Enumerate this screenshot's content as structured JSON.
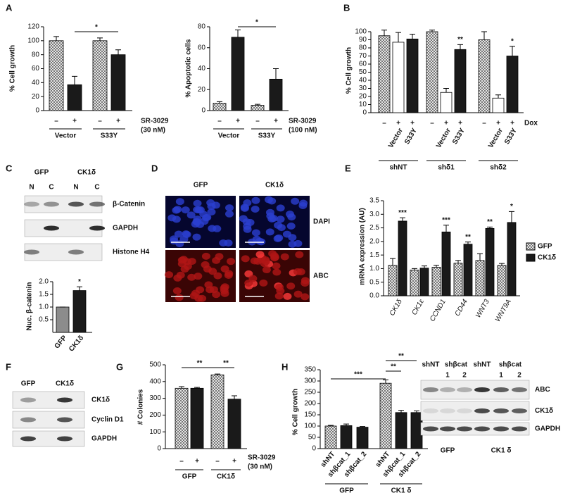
{
  "panel_labels": [
    "A",
    "B",
    "C",
    "D",
    "E",
    "F",
    "G",
    "H"
  ],
  "chart_data": [
    {
      "type": "bar",
      "ylabel": "% Cell growth",
      "categories": [
        "–",
        "+",
        "–",
        "+"
      ],
      "groups": [
        "Vector",
        "S33Y"
      ],
      "treatment": [
        "SR-3029",
        "(30 nM)"
      ],
      "values": [
        100,
        37,
        100,
        80
      ],
      "errors": [
        6,
        12,
        4,
        7
      ],
      "fills": [
        "checker",
        "black",
        "checker",
        "black"
      ],
      "ylim": [
        0,
        120
      ],
      "yticks": [
        0,
        20,
        40,
        60,
        80,
        100,
        120
      ],
      "annotations": [
        "*"
      ]
    },
    {
      "type": "bar",
      "ylabel": "% Apoptotic cells",
      "categories": [
        "–",
        "+",
        "–",
        "+"
      ],
      "groups": [
        "Vector",
        "S33Y"
      ],
      "treatment": [
        "SR-3029",
        "(100 nM)"
      ],
      "values": [
        7,
        70,
        5,
        30
      ],
      "errors": [
        1.5,
        7,
        1,
        10
      ],
      "fills": [
        "checker",
        "black",
        "checker",
        "black"
      ],
      "ylim": [
        0,
        80
      ],
      "yticks": [
        0,
        20,
        40,
        60,
        80
      ],
      "annotations": [
        "*"
      ]
    },
    {
      "type": "bar",
      "ylabel": "% Cell growth",
      "categories": [
        "–",
        "+",
        "+",
        "–",
        "+",
        "+",
        "–",
        "+",
        "+"
      ],
      "x_labels": [
        null,
        "Vector",
        "S33Y",
        null,
        "Vector",
        "S33Y",
        null,
        "Vector",
        "S33Y"
      ],
      "groups": [
        "shNT",
        "shδ1",
        "shδ2"
      ],
      "treatment": [
        "Dox"
      ],
      "values": [
        95,
        87,
        91,
        100,
        25,
        78,
        90,
        18,
        70
      ],
      "errors": [
        7,
        12,
        6,
        2,
        5,
        6,
        10,
        4,
        12
      ],
      "fills": [
        "checker",
        "white",
        "black",
        "checker",
        "white",
        "black",
        "checker",
        "white",
        "black"
      ],
      "ylim": [
        0,
        100
      ],
      "yticks": [
        0,
        10,
        20,
        30,
        40,
        50,
        60,
        70,
        80,
        90,
        100
      ],
      "annotations": [
        "**",
        "*"
      ]
    },
    {
      "type": "bar",
      "ylabel": "Nuc. β-catenin",
      "categories": [
        "GFP",
        "CK1δ"
      ],
      "values": [
        1.0,
        1.65
      ],
      "errors": [
        0,
        0.15
      ],
      "fills": [
        "gray",
        "black"
      ],
      "ylim": [
        0,
        2.0
      ],
      "yticks": [
        0.5,
        {
          "value": 1.0,
          "label": "1.0"
        },
        1.5,
        {
          "value": 2.0,
          "label": "2.0"
        }
      ],
      "annotations": [
        "*"
      ]
    },
    {
      "type": "grouped-bar",
      "ylabel": "mRNA expression (AU)",
      "categories": [
        "CK1δ",
        "CK1ε",
        "CCND1",
        "CD44",
        "WNT3",
        "WNT9A"
      ],
      "series": [
        {
          "name": "GFP",
          "fill": "checker",
          "values": [
            1.12,
            0.95,
            1.05,
            1.2,
            1.3,
            1.12
          ],
          "errors": [
            0.25,
            0.05,
            0.07,
            0.1,
            0.25,
            0.07
          ]
        },
        {
          "name": "CK1δ",
          "fill": "black",
          "values": [
            2.75,
            1.02,
            2.35,
            1.9,
            2.48,
            2.7
          ],
          "errors": [
            0.12,
            0.08,
            0.25,
            0.08,
            0.05,
            0.4
          ]
        }
      ],
      "ylim": [
        0,
        3.5
      ],
      "yticks": [
        {
          "value": 0,
          "label": "0.0"
        },
        0.5,
        {
          "value": 1,
          "label": "1.0"
        },
        1.5,
        {
          "value": 2,
          "label": "2.0"
        },
        2.5,
        {
          "value": 3,
          "label": "3.0"
        },
        3.5
      ],
      "annotations": [
        "***",
        "***",
        "**",
        "**",
        "*"
      ],
      "legend": "right"
    },
    {
      "type": "bar",
      "ylabel": "# Colonies",
      "categories": [
        "–",
        "+",
        "–",
        "+"
      ],
      "groups": [
        "GFP",
        "CK1δ"
      ],
      "treatment": [
        "SR-3029",
        "(30 nM)"
      ],
      "values": [
        360,
        360,
        440,
        295
      ],
      "errors": [
        10,
        5,
        5,
        20
      ],
      "fills": [
        "checker",
        "black",
        "checker",
        "black"
      ],
      "ylim": [
        0,
        500
      ],
      "yticks": [
        0,
        100,
        200,
        300,
        400,
        500
      ],
      "annotations": [
        "**",
        "**"
      ]
    },
    {
      "type": "bar",
      "ylabel": "% Cell growth",
      "categories": [
        "shNT",
        "shβcat_1",
        "shβcat_2",
        "shNT",
        "shβcat_1",
        "shβcat_2"
      ],
      "groups": [
        "GFP",
        "CK1 δ"
      ],
      "values": [
        100,
        102,
        95,
        290,
        160,
        160
      ],
      "errors": [
        3,
        7,
        3,
        15,
        10,
        7
      ],
      "fills": [
        "checker",
        "black",
        "black",
        "checker",
        "black",
        "black"
      ],
      "ylim": [
        0,
        350
      ],
      "yticks": [
        0,
        50,
        100,
        150,
        200,
        250,
        300,
        350
      ],
      "annotations": [
        "***",
        "**",
        "**"
      ]
    }
  ],
  "blots": [
    {
      "lanes": [
        "GFP",
        "CK1δ"
      ],
      "sublanes": [
        "N",
        "C",
        "N",
        "C"
      ],
      "rows": [
        "β-Catenin",
        "GAPDH",
        "Histone H4"
      ]
    },
    {
      "lanes": [
        "GFP",
        "CK1δ"
      ],
      "rows": [
        "CK1δ",
        "Cyclin D1",
        "GAPDH"
      ]
    },
    {
      "lanes": [
        "shNT",
        "shβcat",
        "shNT",
        "shβcat"
      ],
      "sublanes": [
        "1",
        "2",
        "1",
        "2"
      ],
      "groups": [
        "GFP",
        "CK1 δ"
      ],
      "rows": [
        "ABC",
        "CK1δ",
        "GAPDH"
      ]
    }
  ],
  "micrographs": {
    "columns": [
      "GFP",
      "CK1δ"
    ],
    "rows": [
      "DAPI",
      "ABC"
    ]
  }
}
